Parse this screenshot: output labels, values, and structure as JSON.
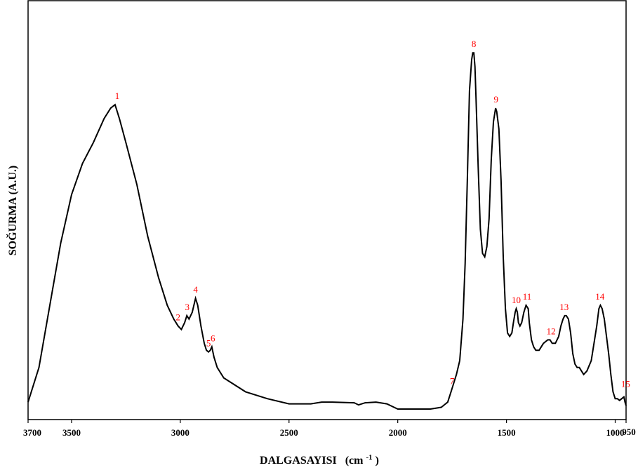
{
  "chart_data": {
    "type": "line",
    "title": "",
    "xlabel": "DALGASAYISI",
    "xlabel_unit": "(cm",
    "xlabel_unit_sup": "-1",
    "xlabel_unit_close": ")",
    "ylabel": "SOĞURMA (A.U.)",
    "xlim": [
      3700,
      950
    ],
    "x_reversed": true,
    "grid": false,
    "legend": "none",
    "line_color": "#000000",
    "label_color": "#ff0000",
    "x_ticks": [
      {
        "value": 3700,
        "label": "3700"
      },
      {
        "value": 3500,
        "label": "3500"
      },
      {
        "value": 3000,
        "label": "3000"
      },
      {
        "value": 2500,
        "label": "2500"
      },
      {
        "value": 2000,
        "label": "2000"
      },
      {
        "value": 1500,
        "label": "1500"
      },
      {
        "value": 1000,
        "label": "1000"
      },
      {
        "value": 950,
        "label": "950"
      }
    ],
    "ylim": [
      0,
      1
    ],
    "series": [
      {
        "x": [
          3700,
          3650,
          3600,
          3550,
          3500,
          3450,
          3400,
          3350,
          3320,
          3300,
          3280,
          3250,
          3200,
          3150,
          3100,
          3060,
          3030,
          3010,
          2995,
          2980,
          2970,
          2960,
          2945,
          2930,
          2920,
          2905,
          2890,
          2880,
          2870,
          2862,
          2855,
          2845,
          2830,
          2800,
          2700,
          2600,
          2500,
          2400,
          2350,
          2300,
          2200,
          2180,
          2150,
          2100,
          2050,
          2000,
          1980,
          1950,
          1900,
          1850,
          1800,
          1770,
          1755,
          1745,
          1730,
          1715,
          1700,
          1690,
          1680,
          1670,
          1660,
          1655,
          1650,
          1645,
          1640,
          1630,
          1620,
          1610,
          1600,
          1590,
          1580,
          1570,
          1560,
          1550,
          1545,
          1535,
          1525,
          1515,
          1505,
          1495,
          1485,
          1475,
          1468,
          1460,
          1455,
          1450,
          1445,
          1438,
          1430,
          1420,
          1410,
          1400,
          1395,
          1385,
          1375,
          1365,
          1350,
          1330,
          1310,
          1300,
          1290,
          1275,
          1260,
          1250,
          1240,
          1232,
          1225,
          1215,
          1205,
          1195,
          1185,
          1175,
          1165,
          1155,
          1145,
          1130,
          1110,
          1095,
          1085,
          1075,
          1068,
          1060,
          1050,
          1040,
          1030,
          1020,
          1010,
          1000,
          990,
          980,
          970,
          960,
          955,
          950
        ],
        "y": [
          0.02,
          0.12,
          0.3,
          0.48,
          0.62,
          0.71,
          0.77,
          0.84,
          0.87,
          0.88,
          0.84,
          0.77,
          0.65,
          0.5,
          0.38,
          0.3,
          0.26,
          0.24,
          0.23,
          0.25,
          0.27,
          0.26,
          0.28,
          0.32,
          0.3,
          0.24,
          0.19,
          0.17,
          0.165,
          0.17,
          0.18,
          0.15,
          0.12,
          0.09,
          0.05,
          0.03,
          0.015,
          0.015,
          0.02,
          0.02,
          0.018,
          0.012,
          0.018,
          0.02,
          0.015,
          0.0,
          0.0,
          0.0,
          0.0,
          0.0,
          0.005,
          0.02,
          0.05,
          0.07,
          0.1,
          0.14,
          0.26,
          0.42,
          0.66,
          0.92,
          1.01,
          1.03,
          1.03,
          0.99,
          0.9,
          0.7,
          0.52,
          0.45,
          0.44,
          0.47,
          0.55,
          0.72,
          0.83,
          0.87,
          0.86,
          0.81,
          0.66,
          0.44,
          0.29,
          0.22,
          0.21,
          0.22,
          0.25,
          0.28,
          0.29,
          0.28,
          0.25,
          0.24,
          0.25,
          0.28,
          0.3,
          0.29,
          0.25,
          0.2,
          0.18,
          0.17,
          0.17,
          0.19,
          0.2,
          0.2,
          0.19,
          0.19,
          0.21,
          0.24,
          0.26,
          0.27,
          0.27,
          0.26,
          0.22,
          0.16,
          0.13,
          0.12,
          0.12,
          0.11,
          0.1,
          0.11,
          0.14,
          0.2,
          0.24,
          0.29,
          0.3,
          0.29,
          0.26,
          0.21,
          0.16,
          0.1,
          0.05,
          0.03,
          0.03,
          0.025,
          0.03,
          0.035,
          0.02,
          0.01
        ]
      }
    ],
    "peak_labels": [
      {
        "label": "1",
        "x": 3290,
        "y": 0.88
      },
      {
        "label": "2",
        "x": 3010,
        "y": 0.24
      },
      {
        "label": "3",
        "x": 2968,
        "y": 0.27
      },
      {
        "label": "4",
        "x": 2930,
        "y": 0.32
      },
      {
        "label": "5",
        "x": 2870,
        "y": 0.165
      },
      {
        "label": "6",
        "x": 2850,
        "y": 0.18
      },
      {
        "label": "7",
        "x": 1750,
        "y": 0.06
      },
      {
        "label": "8",
        "x": 1650,
        "y": 1.03
      },
      {
        "label": "9",
        "x": 1548,
        "y": 0.87
      },
      {
        "label": "10",
        "x": 1455,
        "y": 0.29
      },
      {
        "label": "11",
        "x": 1405,
        "y": 0.3
      },
      {
        "label": "12",
        "x": 1295,
        "y": 0.2
      },
      {
        "label": "13",
        "x": 1235,
        "y": 0.27
      },
      {
        "label": "14",
        "x": 1070,
        "y": 0.3
      },
      {
        "label": "15",
        "x": 965,
        "y": 0.035
      }
    ]
  }
}
